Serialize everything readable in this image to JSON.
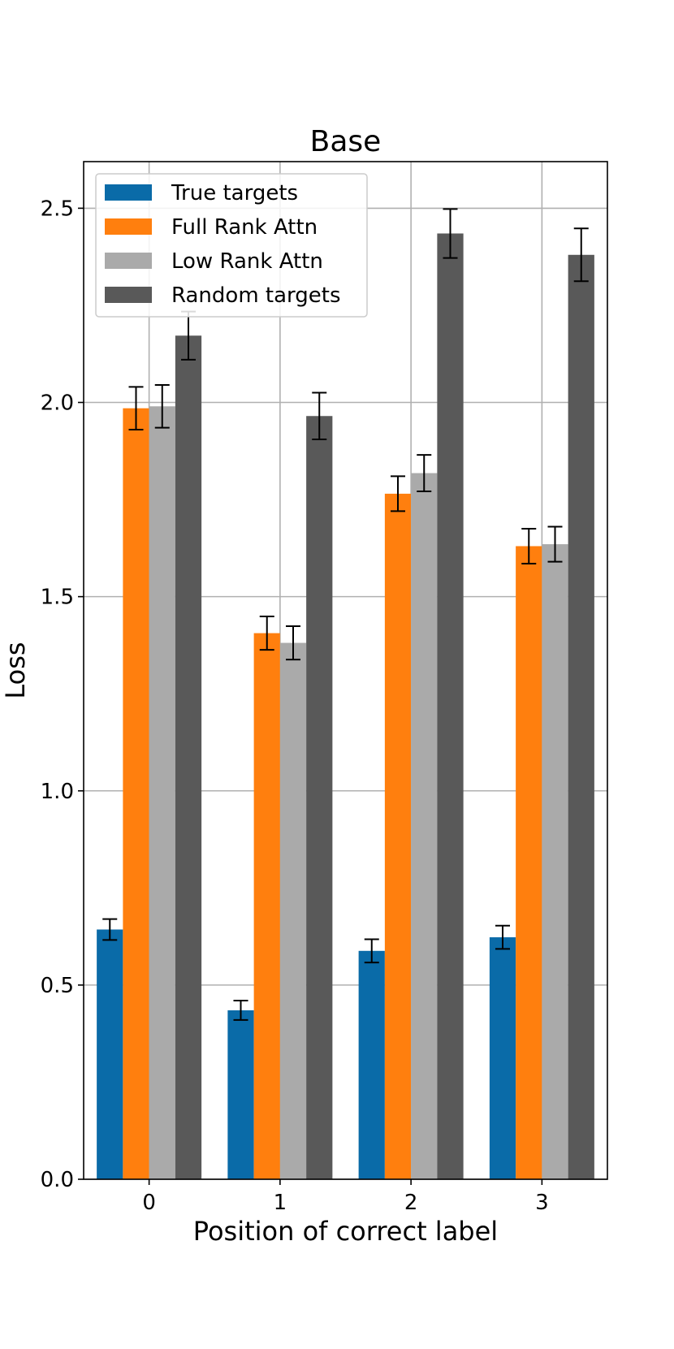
{
  "chart_data": {
    "type": "bar",
    "title": "Base",
    "xlabel": "Position of correct label",
    "ylabel": "Loss",
    "categories": [
      "0",
      "1",
      "2",
      "3"
    ],
    "ylim": [
      0,
      2.62
    ],
    "yticks": [
      0.0,
      0.5,
      1.0,
      1.5,
      2.0,
      2.5
    ],
    "ytick_labels": [
      "0.0",
      "0.5",
      "1.0",
      "1.5",
      "2.0",
      "2.5"
    ],
    "grid": true,
    "legend_position": "top-left",
    "series": [
      {
        "name": "True targets",
        "color": "#0a6ba8",
        "values": [
          0.643,
          0.435,
          0.588,
          0.623
        ],
        "errors": [
          0.027,
          0.025,
          0.03,
          0.03
        ]
      },
      {
        "name": "Full Rank Attn",
        "color": "#ff7f0e",
        "values": [
          1.985,
          1.406,
          1.765,
          1.63
        ],
        "errors": [
          0.055,
          0.043,
          0.045,
          0.045
        ]
      },
      {
        "name": "Low Rank Attn",
        "color": "#aaaaaa",
        "values": [
          1.99,
          1.381,
          1.818,
          1.635
        ],
        "errors": [
          0.055,
          0.043,
          0.047,
          0.045
        ]
      },
      {
        "name": "Random targets",
        "color": "#595959",
        "values": [
          2.172,
          1.965,
          2.435,
          2.38
        ],
        "errors": [
          0.062,
          0.06,
          0.063,
          0.068
        ]
      }
    ]
  }
}
